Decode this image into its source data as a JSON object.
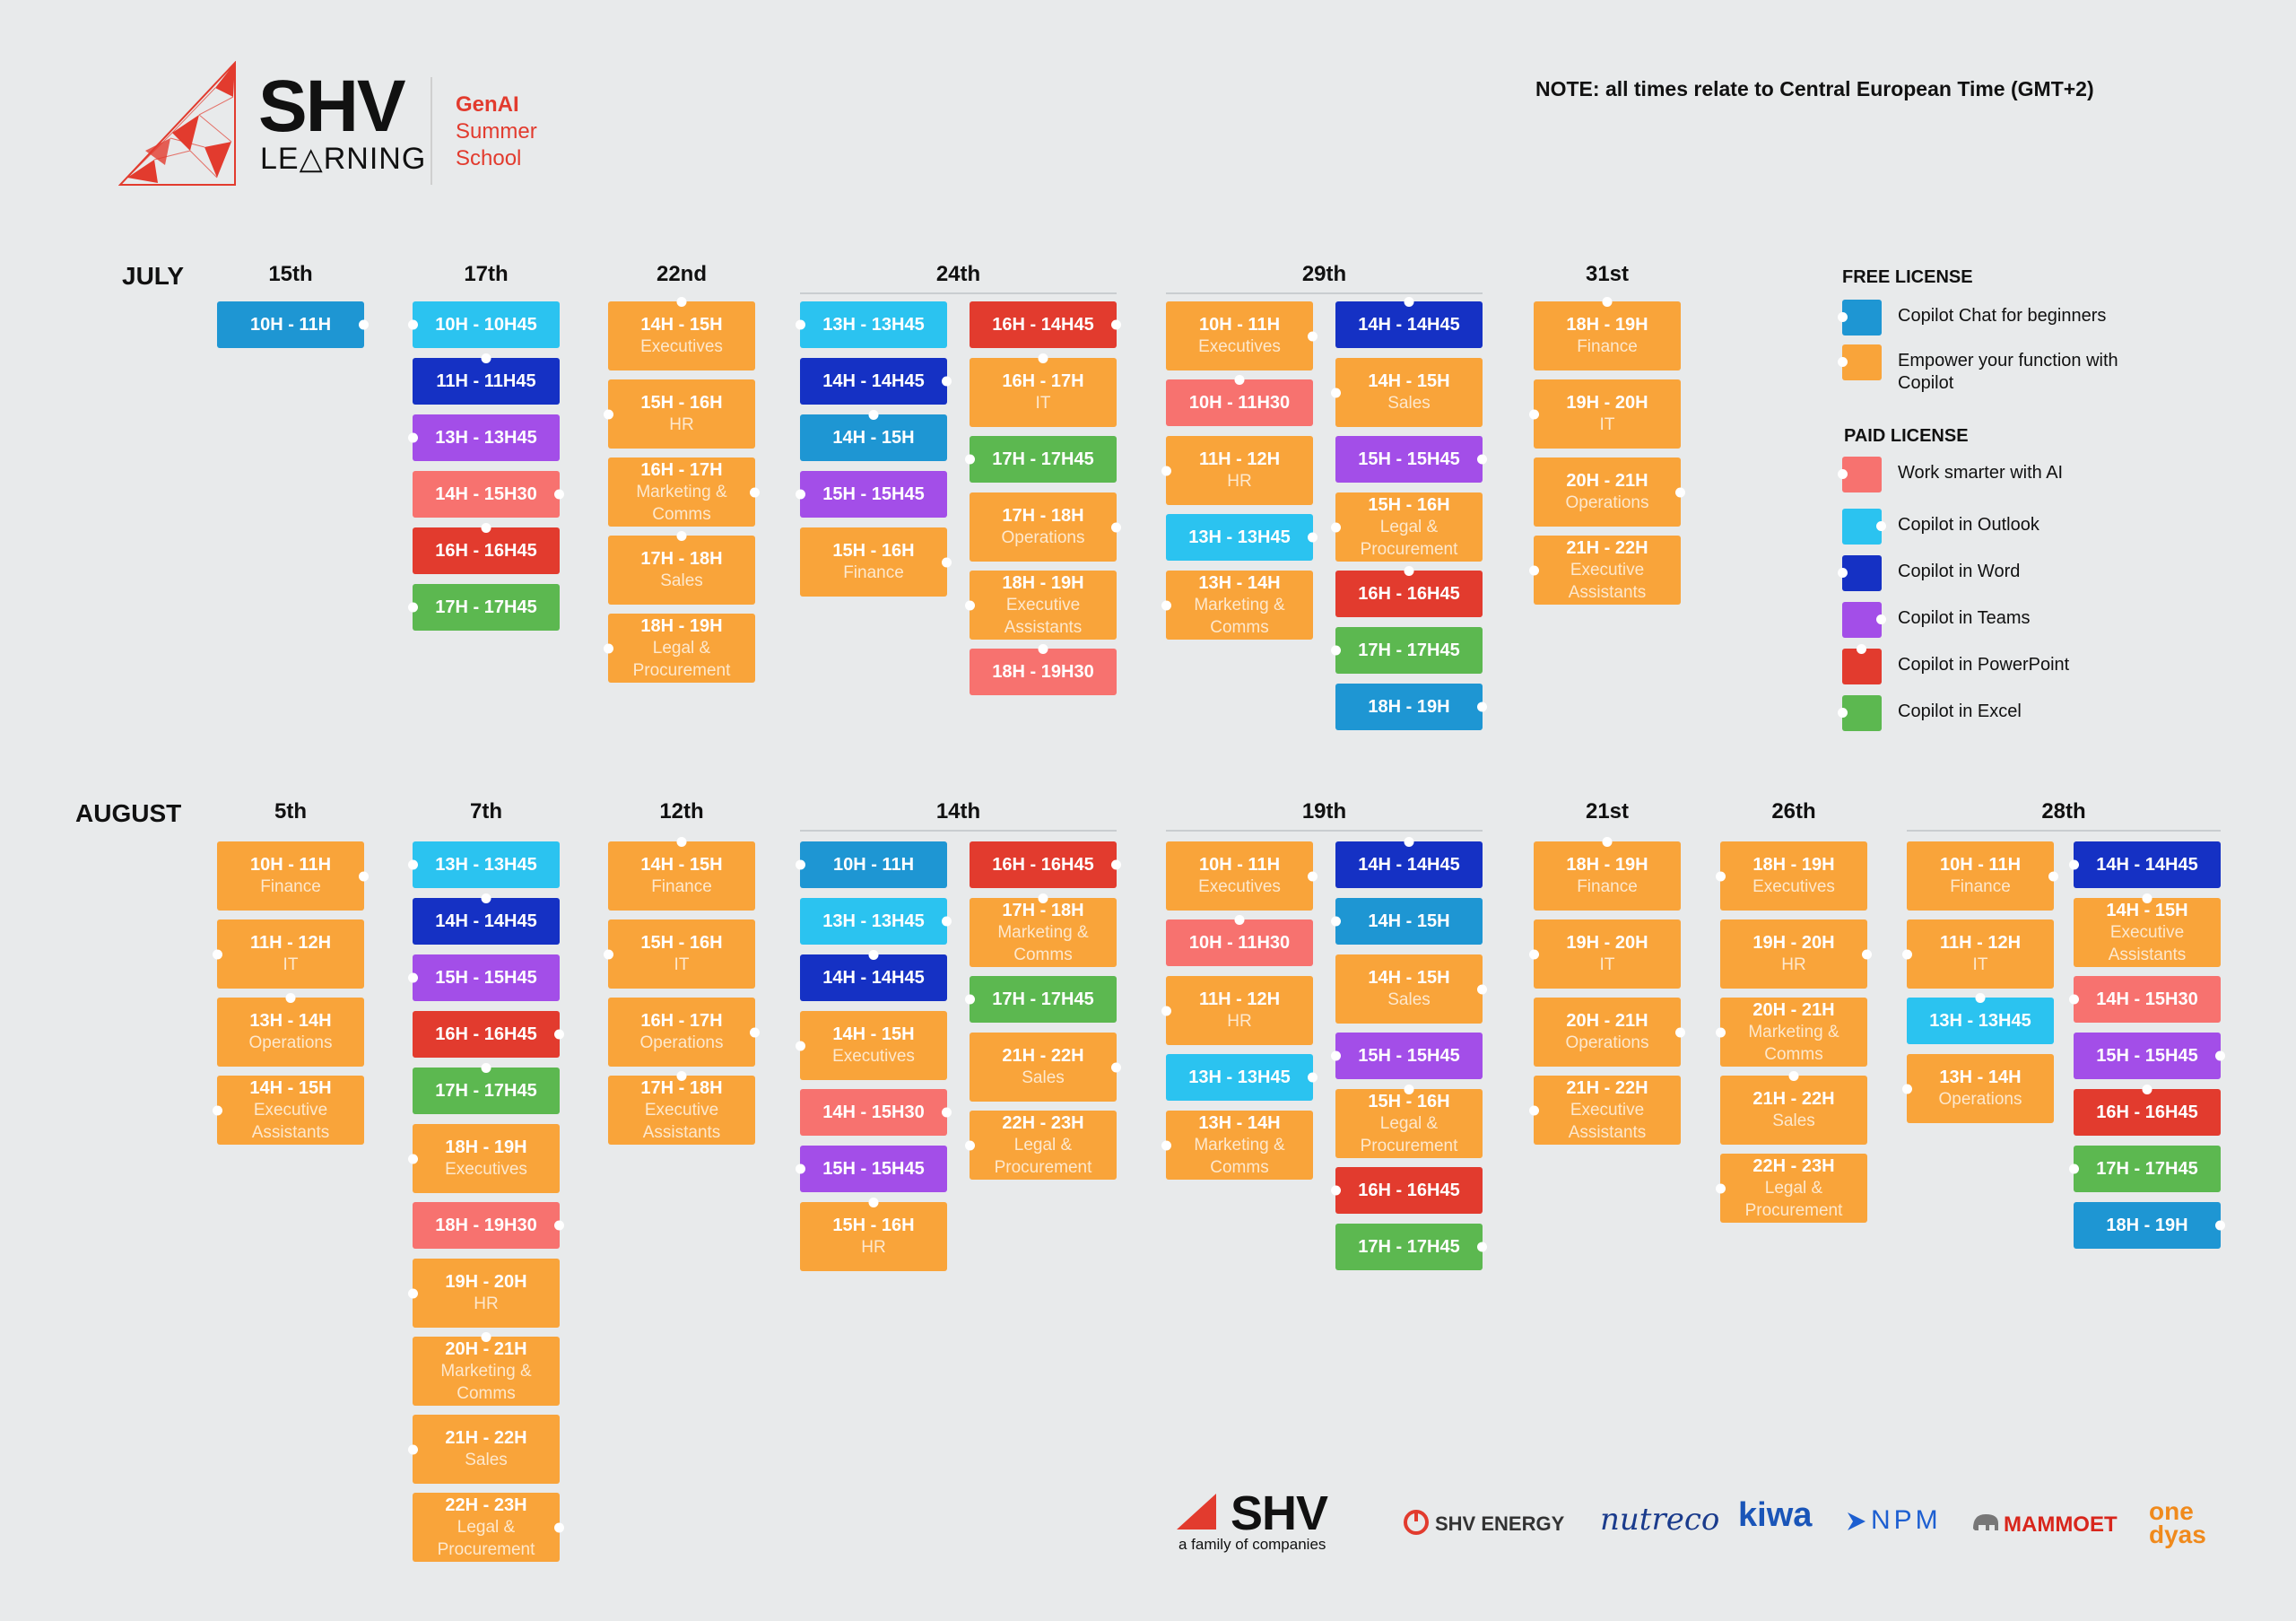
{
  "colors": {
    "teal": "#1e96d3",
    "orange": "#f9a43a",
    "coral": "#f7726f",
    "sky": "#2bc3f0",
    "navy": "#1531c4",
    "purple": "#a34ee8",
    "red": "#e23b2e",
    "green": "#5cb850"
  },
  "header": {
    "brand": "SHV",
    "brand_sub": "LE△RNING",
    "genai": "GenAI",
    "summer": "Summer",
    "school": "School",
    "note": "NOTE: all times relate to Central European Time (GMT+2)"
  },
  "months": {
    "july": "JULY",
    "august": "AUGUST"
  },
  "july_days": [
    "15th",
    "17th",
    "22nd",
    "24th",
    "29th",
    "31st"
  ],
  "august_days": [
    "5th",
    "7th",
    "12th",
    "14th",
    "19th",
    "21st",
    "26th",
    "28th"
  ],
  "legend": {
    "free_title": "FREE LICENSE",
    "free": [
      {
        "label": "Copilot Chat for beginners",
        "color": "teal"
      },
      {
        "label": "Empower your function with Copilot",
        "color": "orange"
      }
    ],
    "paid_title": "PAID LICENSE",
    "paid": [
      {
        "label": "Work smarter with AI",
        "color": "coral"
      },
      {
        "label": "Copilot in Outlook",
        "color": "sky"
      },
      {
        "label": "Copilot in Word",
        "color": "navy"
      },
      {
        "label": "Copilot in Teams",
        "color": "purple"
      },
      {
        "label": "Copilot in PowerPoint",
        "color": "red"
      },
      {
        "label": "Copilot in Excel",
        "color": "green"
      }
    ]
  },
  "sessions": {
    "july": {
      "15th": [
        [
          {
            "t": "10H - 11H",
            "s": "",
            "c": "teal"
          }
        ]
      ],
      "17th": [
        [
          {
            "t": "10H - 10H45",
            "s": "",
            "c": "sky"
          },
          {
            "t": "11H - 11H45",
            "s": "",
            "c": "navy"
          },
          {
            "t": "13H - 13H45",
            "s": "",
            "c": "purple"
          },
          {
            "t": "14H - 15H30",
            "s": "",
            "c": "coral"
          },
          {
            "t": "16H - 16H45",
            "s": "",
            "c": "red"
          },
          {
            "t": "17H - 17H45",
            "s": "",
            "c": "green"
          }
        ]
      ],
      "22nd": [
        [
          {
            "t": "14H - 15H",
            "s": "Executives",
            "c": "orange"
          },
          {
            "t": "15H - 16H",
            "s": "HR",
            "c": "orange"
          },
          {
            "t": "16H - 17H",
            "s": "Marketing & Comms",
            "c": "orange"
          },
          {
            "t": "17H - 18H",
            "s": "Sales",
            "c": "orange"
          },
          {
            "t": "18H - 19H",
            "s": "Legal & Procurement",
            "c": "orange"
          }
        ]
      ],
      "24th": [
        [
          {
            "t": "13H - 13H45",
            "s": "",
            "c": "sky"
          },
          {
            "t": "14H - 14H45",
            "s": "",
            "c": "navy"
          },
          {
            "t": "14H - 15H",
            "s": "",
            "c": "teal"
          },
          {
            "t": "15H - 15H45",
            "s": "",
            "c": "purple"
          },
          {
            "t": "15H - 16H",
            "s": "Finance",
            "c": "orange"
          }
        ],
        [
          {
            "t": "16H - 14H45",
            "s": "",
            "c": "red"
          },
          {
            "t": "16H - 17H",
            "s": "IT",
            "c": "orange"
          },
          {
            "t": "17H - 17H45",
            "s": "",
            "c": "green"
          },
          {
            "t": "17H - 18H",
            "s": "Operations",
            "c": "orange"
          },
          {
            "t": "18H - 19H",
            "s": "Executive Assistants",
            "c": "orange"
          },
          {
            "t": "18H - 19H30",
            "s": "",
            "c": "coral"
          }
        ]
      ],
      "29th": [
        [
          {
            "t": "10H - 11H",
            "s": "Executives",
            "c": "orange"
          },
          {
            "t": "10H - 11H30",
            "s": "",
            "c": "coral"
          },
          {
            "t": "11H - 12H",
            "s": "HR",
            "c": "orange"
          },
          {
            "t": "13H - 13H45",
            "s": "",
            "c": "sky"
          },
          {
            "t": "13H - 14H",
            "s": "Marketing & Comms",
            "c": "orange"
          }
        ],
        [
          {
            "t": "14H - 14H45",
            "s": "",
            "c": "navy"
          },
          {
            "t": "14H - 15H",
            "s": "Sales",
            "c": "orange"
          },
          {
            "t": "15H - 15H45",
            "s": "",
            "c": "purple"
          },
          {
            "t": "15H - 16H",
            "s": "Legal & Procurement",
            "c": "orange"
          },
          {
            "t": "16H - 16H45",
            "s": "",
            "c": "red"
          },
          {
            "t": "17H - 17H45",
            "s": "",
            "c": "green"
          },
          {
            "t": "18H - 19H",
            "s": "",
            "c": "teal"
          }
        ]
      ],
      "31st": [
        [
          {
            "t": "18H - 19H",
            "s": "Finance",
            "c": "orange"
          },
          {
            "t": "19H - 20H",
            "s": "IT",
            "c": "orange"
          },
          {
            "t": "20H - 21H",
            "s": "Operations",
            "c": "orange"
          },
          {
            "t": "21H - 22H",
            "s": "Executive Assistants",
            "c": "orange"
          }
        ]
      ]
    },
    "august": {
      "5th": [
        [
          {
            "t": "10H - 11H",
            "s": "Finance",
            "c": "orange"
          },
          {
            "t": "11H - 12H",
            "s": "IT",
            "c": "orange"
          },
          {
            "t": "13H - 14H",
            "s": "Operations",
            "c": "orange"
          },
          {
            "t": "14H - 15H",
            "s": "Executive Assistants",
            "c": "orange"
          }
        ]
      ],
      "7th": [
        [
          {
            "t": "13H - 13H45",
            "s": "",
            "c": "sky"
          },
          {
            "t": "14H - 14H45",
            "s": "",
            "c": "navy"
          },
          {
            "t": "15H - 15H45",
            "s": "",
            "c": "purple"
          },
          {
            "t": "16H - 16H45",
            "s": "",
            "c": "red"
          },
          {
            "t": "17H - 17H45",
            "s": "",
            "c": "green"
          },
          {
            "t": "18H - 19H",
            "s": "Executives",
            "c": "orange"
          },
          {
            "t": "18H - 19H30",
            "s": "",
            "c": "coral"
          },
          {
            "t": "19H - 20H",
            "s": "HR",
            "c": "orange"
          },
          {
            "t": "20H - 21H",
            "s": "Marketing & Comms",
            "c": "orange"
          },
          {
            "t": "21H - 22H",
            "s": "Sales",
            "c": "orange"
          },
          {
            "t": "22H - 23H",
            "s": "Legal & Procurement",
            "c": "orange"
          }
        ]
      ],
      "12th": [
        [
          {
            "t": "14H - 15H",
            "s": "Finance",
            "c": "orange"
          },
          {
            "t": "15H - 16H",
            "s": "IT",
            "c": "orange"
          },
          {
            "t": "16H - 17H",
            "s": "Operations",
            "c": "orange"
          },
          {
            "t": "17H - 18H",
            "s": "Executive Assistants",
            "c": "orange"
          }
        ]
      ],
      "14th": [
        [
          {
            "t": "10H - 11H",
            "s": "",
            "c": "teal"
          },
          {
            "t": "13H - 13H45",
            "s": "",
            "c": "sky"
          },
          {
            "t": "14H - 14H45",
            "s": "",
            "c": "navy"
          },
          {
            "t": "14H - 15H",
            "s": "Executives",
            "c": "orange"
          },
          {
            "t": "14H - 15H30",
            "s": "",
            "c": "coral"
          },
          {
            "t": "15H - 15H45",
            "s": "",
            "c": "purple"
          },
          {
            "t": "15H - 16H",
            "s": "HR",
            "c": "orange"
          }
        ],
        [
          {
            "t": "16H - 16H45",
            "s": "",
            "c": "red"
          },
          {
            "t": "17H - 18H",
            "s": "Marketing & Comms",
            "c": "orange"
          },
          {
            "t": "17H - 17H45",
            "s": "",
            "c": "green"
          },
          {
            "t": "21H - 22H",
            "s": "Sales",
            "c": "orange"
          },
          {
            "t": "22H - 23H",
            "s": "Legal & Procurement",
            "c": "orange"
          }
        ]
      ],
      "19th": [
        [
          {
            "t": "10H - 11H",
            "s": "Executives",
            "c": "orange"
          },
          {
            "t": "10H - 11H30",
            "s": "",
            "c": "coral"
          },
          {
            "t": "11H - 12H",
            "s": "HR",
            "c": "orange"
          },
          {
            "t": "13H - 13H45",
            "s": "",
            "c": "sky"
          },
          {
            "t": "13H - 14H",
            "s": "Marketing & Comms",
            "c": "orange"
          }
        ],
        [
          {
            "t": "14H - 14H45",
            "s": "",
            "c": "navy"
          },
          {
            "t": "14H - 15H",
            "s": "",
            "c": "teal"
          },
          {
            "t": "14H - 15H",
            "s": "Sales",
            "c": "orange"
          },
          {
            "t": "15H - 15H45",
            "s": "",
            "c": "purple"
          },
          {
            "t": "15H - 16H",
            "s": "Legal & Procurement",
            "c": "orange"
          },
          {
            "t": "16H - 16H45",
            "s": "",
            "c": "red"
          },
          {
            "t": "17H - 17H45",
            "s": "",
            "c": "green"
          }
        ]
      ],
      "21st": [
        [
          {
            "t": "18H - 19H",
            "s": "Finance",
            "c": "orange"
          },
          {
            "t": "19H - 20H",
            "s": "IT",
            "c": "orange"
          },
          {
            "t": "20H - 21H",
            "s": "Operations",
            "c": "orange"
          },
          {
            "t": "21H - 22H",
            "s": "Executive Assistants",
            "c": "orange"
          }
        ]
      ],
      "26th": [
        [
          {
            "t": "18H - 19H",
            "s": "Executives",
            "c": "orange"
          },
          {
            "t": "19H - 20H",
            "s": "HR",
            "c": "orange"
          },
          {
            "t": "20H - 21H",
            "s": "Marketing & Comms",
            "c": "orange"
          },
          {
            "t": "21H - 22H",
            "s": "Sales",
            "c": "orange"
          },
          {
            "t": "22H - 23H",
            "s": "Legal & Procurement",
            "c": "orange"
          }
        ]
      ],
      "28th": [
        [
          {
            "t": "10H - 11H",
            "s": "Finance",
            "c": "orange"
          },
          {
            "t": "11H - 12H",
            "s": "IT",
            "c": "orange"
          },
          {
            "t": "13H - 13H45",
            "s": "",
            "c": "sky"
          },
          {
            "t": "13H - 14H",
            "s": "Operations",
            "c": "orange"
          }
        ],
        [
          {
            "t": "14H - 14H45",
            "s": "",
            "c": "navy"
          },
          {
            "t": "14H - 15H",
            "s": "Executive Assistants",
            "c": "orange"
          },
          {
            "t": "14H - 15H30",
            "s": "",
            "c": "coral"
          },
          {
            "t": "15H - 15H45",
            "s": "",
            "c": "purple"
          },
          {
            "t": "16H - 16H45",
            "s": "",
            "c": "red"
          },
          {
            "t": "17H - 17H45",
            "s": "",
            "c": "green"
          },
          {
            "t": "18H - 19H",
            "s": "",
            "c": "teal"
          }
        ]
      ]
    }
  },
  "footer": {
    "shv": "SHV",
    "tagline": "a family of companies",
    "energy": "SHV ENERGY",
    "nutreco": "nutreco",
    "kiwa": "kiwa",
    "npm": "NPM",
    "mammoet": "MAMMOET",
    "one": "one",
    "dyas": "dyas"
  }
}
